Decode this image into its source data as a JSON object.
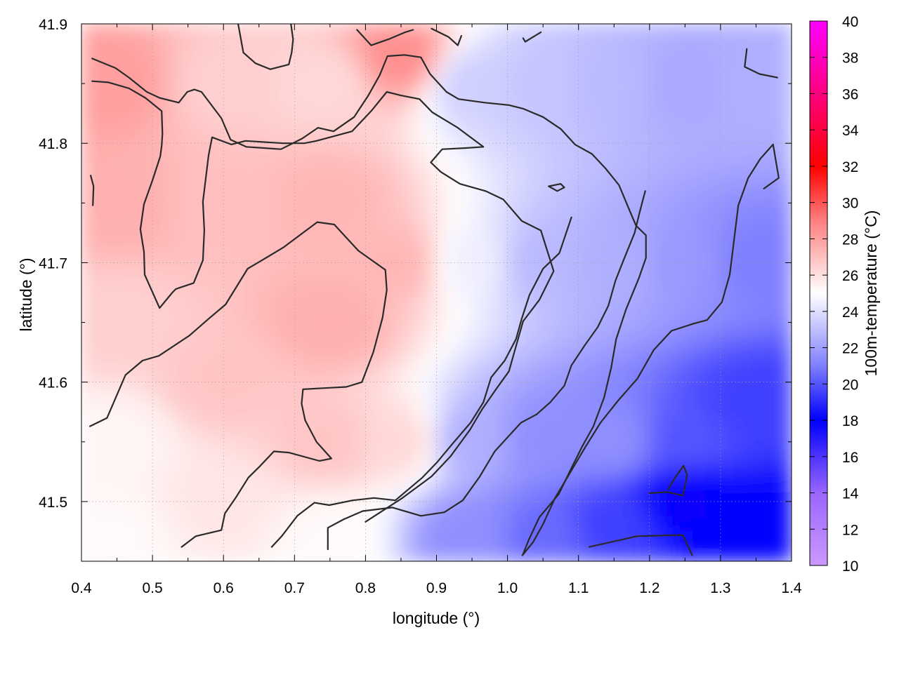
{
  "chart_data": {
    "type": "heatmap",
    "title": "",
    "xlabel": "longitude (°)",
    "ylabel": "latitude (°)",
    "colorbar_label": "100m-temperature (°C)",
    "xlim": [
      0.4,
      1.4
    ],
    "ylim": [
      41.45,
      41.9
    ],
    "x_ticks": [
      "0.4",
      "0.5",
      "0.6",
      "0.7",
      "0.8",
      "0.9",
      "1.0",
      "1.1",
      "1.2",
      "1.3",
      "1.4"
    ],
    "y_ticks": [
      "41.5",
      "41.6",
      "41.7",
      "41.8",
      "41.9"
    ],
    "colorbar_range": [
      10,
      40
    ],
    "colorbar_ticks": [
      "10",
      "12",
      "14",
      "16",
      "18",
      "20",
      "22",
      "24",
      "26",
      "28",
      "30",
      "32",
      "34",
      "36",
      "38",
      "40"
    ],
    "colorbar_stops": [
      {
        "value": 10,
        "color": "#cc99ff"
      },
      {
        "value": 14,
        "color": "#9966ff"
      },
      {
        "value": 18,
        "color": "#0000ff"
      },
      {
        "value": 21,
        "color": "#7f7fff"
      },
      {
        "value": 25,
        "color": "#ffffff"
      },
      {
        "value": 29,
        "color": "#ff7f7f"
      },
      {
        "value": 32,
        "color": "#ff0000"
      },
      {
        "value": 36,
        "color": "#ff007f"
      },
      {
        "value": 40,
        "color": "#ff00ff"
      }
    ],
    "grid": true,
    "field_description": "Warm (~26–28 °C) air over the west (lon < 0.9), sharp transition near lon 0.9, cooler (~17–23 °C) air to the east, coolest in the south-east corner.",
    "temperature_samples": [
      {
        "lon": 0.45,
        "lat": 41.85,
        "t": 28
      },
      {
        "lon": 0.45,
        "lat": 41.75,
        "t": 27.5
      },
      {
        "lon": 0.45,
        "lat": 41.65,
        "t": 26.5
      },
      {
        "lon": 0.45,
        "lat": 41.55,
        "t": 25.3
      },
      {
        "lon": 0.45,
        "lat": 41.47,
        "t": 25.2
      },
      {
        "lon": 0.6,
        "lat": 41.85,
        "t": 26.5
      },
      {
        "lon": 0.6,
        "lat": 41.75,
        "t": 27
      },
      {
        "lon": 0.6,
        "lat": 41.6,
        "t": 26.8
      },
      {
        "lon": 0.6,
        "lat": 41.5,
        "t": 25.8
      },
      {
        "lon": 0.75,
        "lat": 41.85,
        "t": 26.2
      },
      {
        "lon": 0.75,
        "lat": 41.75,
        "t": 27.3
      },
      {
        "lon": 0.75,
        "lat": 41.65,
        "t": 27.5
      },
      {
        "lon": 0.75,
        "lat": 41.55,
        "t": 26.8
      },
      {
        "lon": 0.75,
        "lat": 41.47,
        "t": 25.2
      },
      {
        "lon": 0.85,
        "lat": 41.87,
        "t": 28.5
      },
      {
        "lon": 0.85,
        "lat": 41.7,
        "t": 27.3
      },
      {
        "lon": 0.85,
        "lat": 41.55,
        "t": 26.2
      },
      {
        "lon": 0.95,
        "lat": 41.85,
        "t": 23.5
      },
      {
        "lon": 0.95,
        "lat": 41.7,
        "t": 24.5
      },
      {
        "lon": 0.95,
        "lat": 41.55,
        "t": 22.5
      },
      {
        "lon": 0.95,
        "lat": 41.47,
        "t": 21.5
      },
      {
        "lon": 1.05,
        "lat": 41.85,
        "t": 23.2
      },
      {
        "lon": 1.05,
        "lat": 41.7,
        "t": 22.8
      },
      {
        "lon": 1.05,
        "lat": 41.55,
        "t": 21.5
      },
      {
        "lon": 1.05,
        "lat": 41.47,
        "t": 20.5
      },
      {
        "lon": 1.15,
        "lat": 41.85,
        "t": 22.8
      },
      {
        "lon": 1.15,
        "lat": 41.7,
        "t": 22.5
      },
      {
        "lon": 1.15,
        "lat": 41.55,
        "t": 21.5
      },
      {
        "lon": 1.15,
        "lat": 41.48,
        "t": 19.5
      },
      {
        "lon": 1.25,
        "lat": 41.85,
        "t": 22.3
      },
      {
        "lon": 1.25,
        "lat": 41.7,
        "t": 21.8
      },
      {
        "lon": 1.25,
        "lat": 41.55,
        "t": 20
      },
      {
        "lon": 1.25,
        "lat": 41.5,
        "t": 17.8
      },
      {
        "lon": 1.35,
        "lat": 41.85,
        "t": 22.5
      },
      {
        "lon": 1.35,
        "lat": 41.7,
        "t": 21
      },
      {
        "lon": 1.35,
        "lat": 41.58,
        "t": 19.5
      },
      {
        "lon": 1.35,
        "lat": 41.48,
        "t": 18
      }
    ],
    "contours": [
      [
        [
          0.415,
          41.871
        ],
        [
          0.448,
          41.863
        ],
        [
          0.467,
          41.855
        ],
        [
          0.492,
          41.843
        ],
        [
          0.51,
          41.838
        ],
        [
          0.537,
          41.834
        ],
        [
          0.549,
          41.843
        ],
        [
          0.559,
          41.845
        ],
        [
          0.569,
          41.843
        ],
        [
          0.597,
          41.821
        ],
        [
          0.61,
          41.803
        ],
        [
          0.632,
          41.797
        ],
        [
          0.657,
          41.796
        ],
        [
          0.681,
          41.795
        ],
        [
          0.711,
          41.804
        ],
        [
          0.733,
          41.813
        ],
        [
          0.755,
          41.81
        ],
        [
          0.784,
          41.822
        ],
        [
          0.804,
          41.84
        ],
        [
          0.82,
          41.857
        ],
        [
          0.831,
          41.873
        ],
        [
          0.855,
          41.874
        ],
        [
          0.878,
          41.872
        ],
        [
          0.891,
          41.858
        ],
        [
          0.914,
          41.843
        ],
        [
          0.931,
          41.837
        ],
        [
          0.968,
          41.834
        ],
        [
          1.002,
          41.832
        ],
        [
          1.022,
          41.829
        ],
        [
          1.05,
          41.822
        ],
        [
          1.075,
          41.812
        ],
        [
          1.095,
          41.799
        ],
        [
          1.119,
          41.791
        ],
        [
          1.138,
          41.779
        ],
        [
          1.157,
          41.765
        ],
        [
          1.171,
          41.745
        ],
        [
          1.181,
          41.731
        ],
        [
          1.195,
          41.723
        ],
        [
          1.195,
          41.704
        ],
        [
          1.185,
          41.687
        ],
        [
          1.167,
          41.661
        ],
        [
          1.153,
          41.636
        ],
        [
          1.146,
          41.612
        ],
        [
          1.136,
          41.587
        ],
        [
          1.121,
          41.563
        ],
        [
          1.105,
          41.546
        ],
        [
          1.09,
          41.528
        ],
        [
          1.072,
          41.506
        ],
        [
          1.045,
          41.487
        ],
        [
          1.03,
          41.468
        ],
        [
          1.022,
          41.456
        ]
      ],
      [
        [
          0.415,
          41.852
        ],
        [
          0.438,
          41.851
        ],
        [
          0.467,
          41.846
        ],
        [
          0.49,
          41.838
        ],
        [
          0.513,
          41.827
        ],
        [
          0.514,
          41.808
        ],
        [
          0.513,
          41.798
        ],
        [
          0.511,
          41.789
        ],
        [
          0.5,
          41.769
        ],
        [
          0.488,
          41.749
        ],
        [
          0.483,
          41.728
        ],
        [
          0.488,
          41.709
        ],
        [
          0.489,
          41.69
        ],
        [
          0.498,
          41.678
        ],
        [
          0.51,
          41.662
        ],
        [
          0.528,
          41.675
        ],
        [
          0.533,
          41.678
        ],
        [
          0.558,
          41.683
        ],
        [
          0.571,
          41.702
        ],
        [
          0.573,
          41.727
        ],
        [
          0.571,
          41.751
        ],
        [
          0.579,
          41.79
        ],
        [
          0.584,
          41.805
        ],
        [
          0.611,
          41.799
        ],
        [
          0.631,
          41.802
        ],
        [
          0.684,
          41.8
        ],
        [
          0.714,
          41.8
        ],
        [
          0.731,
          41.802
        ],
        [
          0.781,
          41.81
        ],
        [
          0.808,
          41.827
        ],
        [
          0.83,
          41.843
        ],
        [
          0.85,
          41.84
        ],
        [
          0.876,
          41.837
        ],
        [
          0.894,
          41.826
        ],
        [
          0.93,
          41.813
        ],
        [
          0.966,
          41.797
        ],
        [
          0.941,
          41.796
        ],
        [
          0.908,
          41.795
        ],
        [
          0.892,
          41.784
        ],
        [
          0.906,
          41.776
        ],
        [
          0.933,
          41.766
        ],
        [
          0.969,
          41.76
        ],
        [
          0.994,
          41.753
        ],
        [
          1.02,
          41.735
        ],
        [
          1.047,
          41.727
        ],
        [
          1.065,
          41.693
        ],
        [
          1.045,
          41.669
        ],
        [
          1.022,
          41.651
        ],
        [
          1.011,
          41.628
        ],
        [
          1.002,
          41.609
        ],
        [
          0.985,
          41.595
        ],
        [
          0.964,
          41.577
        ],
        [
          0.947,
          41.56
        ],
        [
          0.92,
          41.538
        ],
        [
          0.893,
          41.521
        ],
        [
          0.852,
          41.503
        ],
        [
          0.8,
          41.483
        ]
      ],
      [
        [
          0.412,
          41.563
        ],
        [
          0.436,
          41.57
        ],
        [
          0.462,
          41.606
        ],
        [
          0.486,
          41.618
        ],
        [
          0.509,
          41.622
        ],
        [
          0.552,
          41.639
        ],
        [
          0.579,
          41.653
        ],
        [
          0.603,
          41.665
        ],
        [
          0.634,
          41.695
        ],
        [
          0.657,
          41.703
        ],
        [
          0.685,
          41.713
        ],
        [
          0.732,
          41.734
        ],
        [
          0.756,
          41.732
        ],
        [
          0.79,
          41.71
        ],
        [
          0.828,
          41.694
        ],
        [
          0.83,
          41.677
        ],
        [
          0.824,
          41.654
        ],
        [
          0.811,
          41.625
        ],
        [
          0.795,
          41.6
        ],
        [
          0.773,
          41.596
        ],
        [
          0.742,
          41.595
        ],
        [
          0.712,
          41.594
        ],
        [
          0.71,
          41.582
        ],
        [
          0.715,
          41.568
        ],
        [
          0.731,
          41.55
        ],
        [
          0.752,
          41.536
        ],
        [
          0.735,
          41.534
        ],
        [
          0.692,
          41.541
        ],
        [
          0.671,
          41.542
        ],
        [
          0.652,
          41.53
        ],
        [
          0.635,
          41.52
        ],
        [
          0.617,
          41.503
        ],
        [
          0.602,
          41.49
        ],
        [
          0.597,
          41.476
        ],
        [
          0.561,
          41.471
        ],
        [
          0.541,
          41.462
        ]
      ],
      [
        [
          0.668,
          41.462
        ],
        [
          0.682,
          41.471
        ],
        [
          0.704,
          41.488
        ],
        [
          0.728,
          41.499
        ],
        [
          0.749,
          41.497
        ],
        [
          0.782,
          41.501
        ],
        [
          0.812,
          41.503
        ],
        [
          0.842,
          41.501
        ],
        [
          0.88,
          41.52
        ],
        [
          0.901,
          41.533
        ],
        [
          0.922,
          41.548
        ],
        [
          0.948,
          41.566
        ],
        [
          0.966,
          41.583
        ],
        [
          0.977,
          41.604
        ],
        [
          0.996,
          41.618
        ],
        [
          1.012,
          41.636
        ],
        [
          1.02,
          41.653
        ],
        [
          1.031,
          41.673
        ],
        [
          1.05,
          41.695
        ],
        [
          1.073,
          41.708
        ],
        [
          1.09,
          41.738
        ]
      ],
      [
        [
          0.747,
          41.46
        ],
        [
          0.747,
          41.478
        ],
        [
          0.769,
          41.485
        ],
        [
          0.796,
          41.492
        ],
        [
          0.838,
          41.495
        ],
        [
          0.878,
          41.488
        ],
        [
          0.911,
          41.491
        ],
        [
          0.937,
          41.501
        ],
        [
          0.961,
          41.521
        ],
        [
          0.982,
          41.542
        ],
        [
          1.002,
          41.555
        ],
        [
          1.019,
          41.566
        ],
        [
          1.041,
          41.573
        ],
        [
          1.06,
          41.583
        ],
        [
          1.08,
          41.597
        ],
        [
          1.09,
          41.614
        ],
        [
          1.109,
          41.631
        ],
        [
          1.127,
          41.646
        ],
        [
          1.142,
          41.664
        ],
        [
          1.152,
          41.685
        ],
        [
          1.164,
          41.703
        ],
        [
          1.179,
          41.725
        ],
        [
          1.186,
          41.742
        ],
        [
          1.194,
          41.76
        ]
      ],
      [
        [
          1.021,
          41.455
        ],
        [
          1.036,
          41.466
        ],
        [
          1.05,
          41.481
        ],
        [
          1.067,
          41.503
        ],
        [
          1.087,
          41.523
        ],
        [
          1.11,
          41.546
        ],
        [
          1.131,
          41.566
        ],
        [
          1.155,
          41.584
        ],
        [
          1.183,
          41.603
        ],
        [
          1.206,
          41.627
        ],
        [
          1.231,
          41.643
        ],
        [
          1.262,
          41.649
        ],
        [
          1.281,
          41.652
        ],
        [
          1.302,
          41.667
        ],
        [
          1.313,
          41.69
        ],
        [
          1.318,
          41.714
        ],
        [
          1.325,
          41.748
        ],
        [
          1.339,
          41.771
        ],
        [
          1.356,
          41.787
        ],
        [
          1.374,
          41.799
        ],
        [
          1.382,
          41.771
        ],
        [
          1.361,
          41.762
        ]
      ],
      [
        [
          1.2,
          41.507
        ],
        [
          1.225,
          41.508
        ],
        [
          1.247,
          41.505
        ],
        [
          1.253,
          41.522
        ],
        [
          1.248,
          41.53
        ],
        [
          1.236,
          41.52
        ],
        [
          1.226,
          41.51
        ]
      ],
      [
        [
          1.115,
          41.462
        ],
        [
          1.16,
          41.468
        ],
        [
          1.182,
          41.471
        ],
        [
          1.247,
          41.472
        ],
        [
          1.26,
          41.455
        ]
      ],
      [
        [
          1.058,
          41.764
        ],
        [
          1.075,
          41.766
        ],
        [
          1.08,
          41.763
        ],
        [
          1.07,
          41.76
        ],
        [
          1.058,
          41.764
        ]
      ],
      [
        [
          0.413,
          41.773
        ],
        [
          0.417,
          41.764
        ],
        [
          0.416,
          41.748
        ]
      ],
      [
        [
          0.62,
          41.902
        ],
        [
          0.628,
          41.876
        ],
        [
          0.645,
          41.867
        ],
        [
          0.666,
          41.862
        ],
        [
          0.692,
          41.866
        ],
        [
          0.696,
          41.876
        ],
        [
          0.698,
          41.887
        ],
        [
          0.695,
          41.9
        ]
      ],
      [
        [
          0.788,
          41.895
        ],
        [
          0.808,
          41.882
        ],
        [
          0.832,
          41.887
        ],
        [
          0.856,
          41.893
        ],
        [
          0.867,
          41.895
        ]
      ],
      [
        [
          0.893,
          41.896
        ],
        [
          0.917,
          41.889
        ],
        [
          0.93,
          41.882
        ],
        [
          0.935,
          41.89
        ]
      ],
      [
        [
          1.022,
          41.888
        ],
        [
          1.025,
          41.885
        ],
        [
          1.047,
          41.893
        ]
      ],
      [
        [
          1.337,
          41.879
        ],
        [
          1.334,
          41.864
        ],
        [
          1.355,
          41.858
        ],
        [
          1.38,
          41.855
        ]
      ]
    ]
  }
}
